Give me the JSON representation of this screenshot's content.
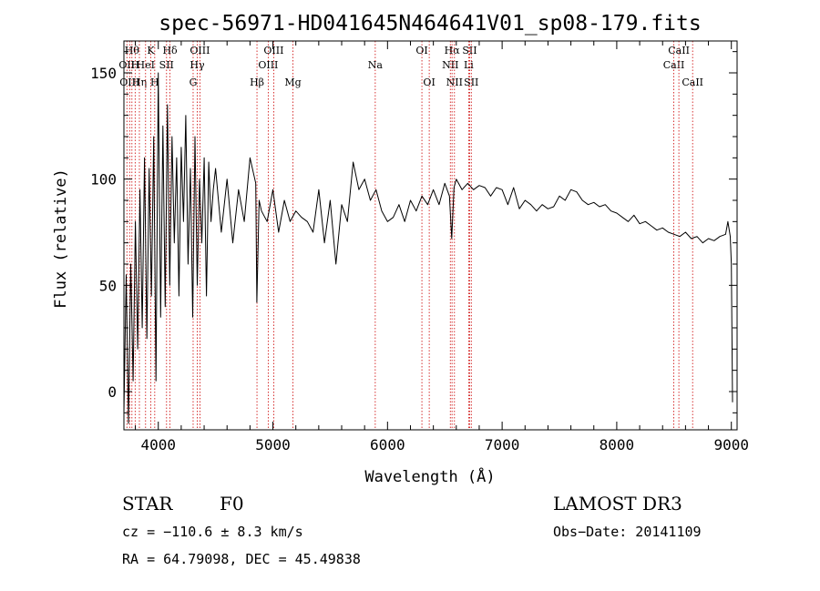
{
  "chart_data": {
    "type": "line",
    "title": "spec-56971-HD041645N464641V01_sp08-179.fits",
    "xlabel": "Wavelength (Å)",
    "ylabel": "Flux (relative)",
    "xlim": [
      3700,
      9050
    ],
    "ylim": [
      -18,
      165
    ],
    "xticks": [
      4000,
      5000,
      6000,
      7000,
      8000,
      9000
    ],
    "yticks": [
      0,
      50,
      100,
      150
    ],
    "grid": false,
    "legend": "none",
    "line_color": "#000000",
    "marker_color": "#cc0000",
    "series": [
      {
        "x": [
          3700,
          3720,
          3740,
          3760,
          3780,
          3800,
          3820,
          3840,
          3860,
          3880,
          3900,
          3920,
          3940,
          3960,
          3980,
          4000,
          4020,
          4040,
          4060,
          4080,
          4100,
          4120,
          4140,
          4160,
          4180,
          4200,
          4220,
          4240,
          4260,
          4280,
          4300,
          4320,
          4340,
          4360,
          4380,
          4400,
          4420,
          4440,
          4460,
          4480,
          4500,
          4550,
          4600,
          4650,
          4700,
          4750,
          4800,
          4850,
          4860,
          4880,
          4900,
          4950,
          5000,
          5050,
          5100,
          5150,
          5200,
          5250,
          5300,
          5350,
          5400,
          5450,
          5500,
          5550,
          5600,
          5650,
          5700,
          5750,
          5800,
          5850,
          5900,
          5950,
          6000,
          6050,
          6100,
          6150,
          6200,
          6250,
          6300,
          6350,
          6400,
          6450,
          6500,
          6540,
          6560,
          6580,
          6600,
          6650,
          6700,
          6750,
          6800,
          6850,
          6900,
          6950,
          7000,
          7050,
          7100,
          7150,
          7200,
          7250,
          7300,
          7350,
          7400,
          7450,
          7500,
          7550,
          7600,
          7650,
          7700,
          7750,
          7800,
          7850,
          7900,
          7950,
          8000,
          8050,
          8100,
          8150,
          8200,
          8250,
          8300,
          8350,
          8400,
          8450,
          8500,
          8550,
          8600,
          8650,
          8700,
          8750,
          8800,
          8850,
          8900,
          8950,
          8970,
          8990,
          9000,
          9010
        ],
        "y": [
          -10,
          55,
          -15,
          60,
          5,
          80,
          20,
          95,
          30,
          110,
          25,
          105,
          45,
          120,
          5,
          150,
          35,
          125,
          40,
          135,
          50,
          120,
          70,
          110,
          45,
          115,
          80,
          130,
          60,
          105,
          35,
          120,
          50,
          100,
          70,
          110,
          45,
          108,
          80,
          95,
          105,
          75,
          100,
          70,
          95,
          80,
          110,
          98,
          42,
          90,
          85,
          80,
          95,
          75,
          90,
          80,
          85,
          82,
          80,
          75,
          95,
          70,
          90,
          60,
          88,
          80,
          108,
          95,
          100,
          90,
          95,
          85,
          80,
          82,
          88,
          80,
          90,
          85,
          92,
          88,
          95,
          88,
          98,
          92,
          72,
          96,
          100,
          95,
          98,
          95,
          97,
          96,
          92,
          96,
          95,
          88,
          96,
          86,
          90,
          88,
          85,
          88,
          86,
          87,
          92,
          90,
          95,
          94,
          90,
          88,
          89,
          87,
          88,
          85,
          84,
          82,
          80,
          83,
          79,
          80,
          78,
          76,
          77,
          75,
          74,
          73,
          75,
          72,
          73,
          70,
          72,
          71,
          73,
          74,
          80,
          73,
          60,
          -5
        ]
      }
    ],
    "line_markers": [
      {
        "wl": 3726,
        "label": "OII",
        "row": 1
      },
      {
        "wl": 3750,
        "label": "OIII",
        "row": 2
      },
      {
        "wl": 3770,
        "label": "Hθ",
        "row": 0
      },
      {
        "wl": 3798,
        "label": "H",
        "row": 1
      },
      {
        "wl": 3835,
        "label": "Hη",
        "row": 2
      },
      {
        "wl": 3889,
        "label": "HeI",
        "row": 1
      },
      {
        "wl": 3934,
        "label": "K",
        "row": 0
      },
      {
        "wl": 3969,
        "label": "H",
        "row": 2
      },
      {
        "wl": 4072,
        "label": "SII",
        "row": 1
      },
      {
        "wl": 4102,
        "label": "Hδ",
        "row": 0
      },
      {
        "wl": 4304,
        "label": "G",
        "row": 2
      },
      {
        "wl": 4340,
        "label": "Hγ",
        "row": 1
      },
      {
        "wl": 4363,
        "label": "OIII",
        "row": 0
      },
      {
        "wl": 4861,
        "label": "Hβ",
        "row": 2
      },
      {
        "wl": 4959,
        "label": "OIII",
        "row": 1
      },
      {
        "wl": 5007,
        "label": "OIII",
        "row": 0
      },
      {
        "wl": 5175,
        "label": "Mg",
        "row": 2
      },
      {
        "wl": 5893,
        "label": "Na",
        "row": 1
      },
      {
        "wl": 6300,
        "label": "OI",
        "row": 0
      },
      {
        "wl": 6364,
        "label": "OI",
        "row": 2
      },
      {
        "wl": 6548,
        "label": "NII",
        "row": 1
      },
      {
        "wl": 6563,
        "label": "Hα",
        "row": 0
      },
      {
        "wl": 6584,
        "label": "NII",
        "row": 2
      },
      {
        "wl": 6708,
        "label": "Li",
        "row": 1
      },
      {
        "wl": 6717,
        "label": "SII",
        "row": 0
      },
      {
        "wl": 6731,
        "label": "SII",
        "row": 2
      },
      {
        "wl": 8498,
        "label": "CaII",
        "row": 1
      },
      {
        "wl": 8542,
        "label": "CaII",
        "row": 0
      },
      {
        "wl": 8662,
        "label": "CaII",
        "row": 2
      }
    ]
  },
  "info": {
    "object_class": "STAR",
    "subclass": "F0",
    "survey": "LAMOST DR3",
    "cz": "cz = −110.6 ± 8.3 km/s",
    "obs_date": "Obs−Date: 20141109",
    "radec": "RA =  64.79098, DEC =  45.49838"
  }
}
